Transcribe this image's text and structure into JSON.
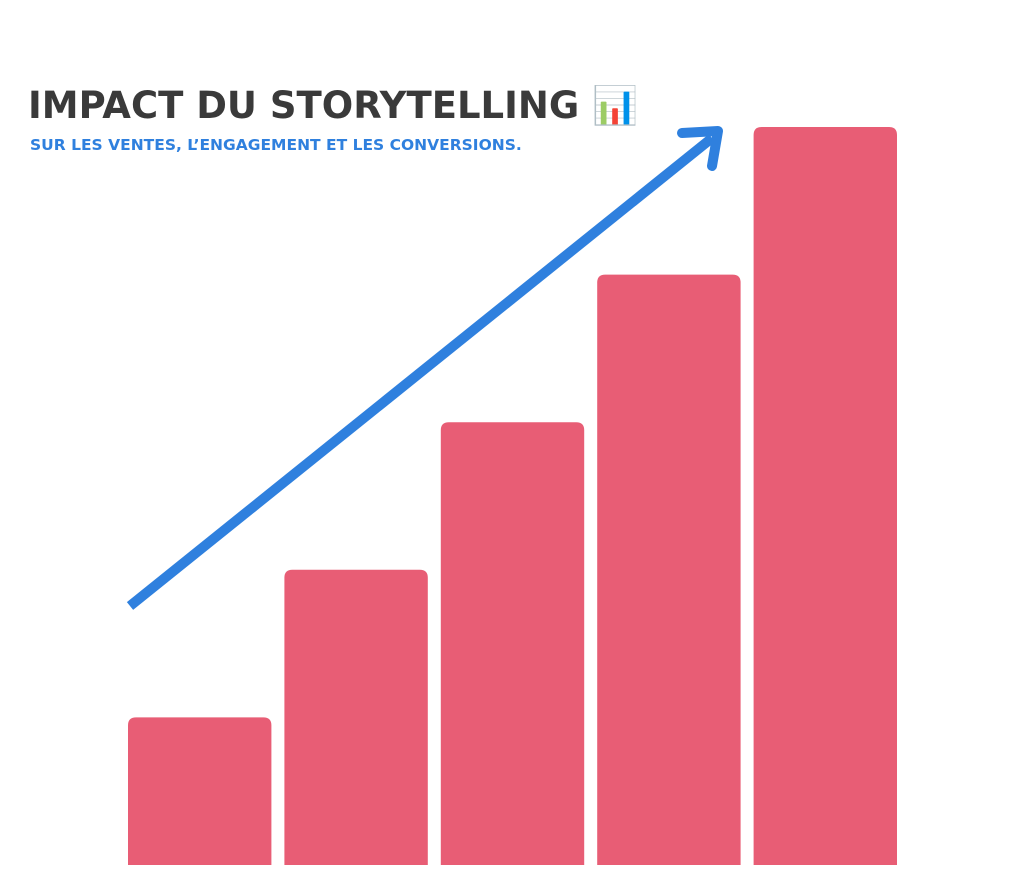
{
  "chart_data": {
    "type": "bar",
    "title": "IMPACT DU STORYTELLING 📊",
    "subtitle": "SUR LES VENTES, L’ENGAGEMENT ET LES CONVERSIONS.",
    "categories": [
      null,
      null,
      null,
      null,
      null
    ],
    "values": [
      1,
      2,
      3,
      4,
      5
    ],
    "color": "#e85d75",
    "ylim": [
      0,
      5
    ]
  }
}
